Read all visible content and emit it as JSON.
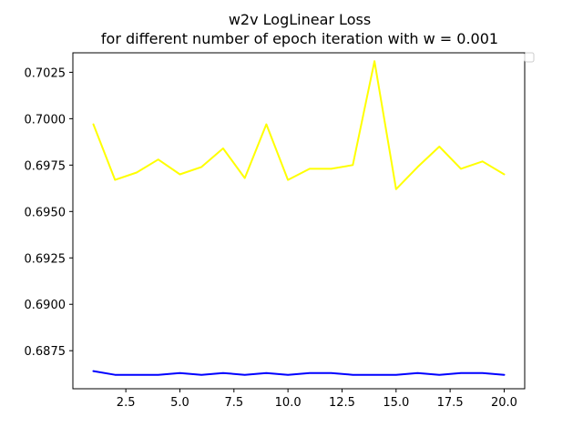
{
  "chart_data": {
    "type": "line",
    "title": "w2v LogLinear Loss",
    "subtitle": "for different number of epoch iteration with w = 0.001",
    "xlabel": "",
    "ylabel": "",
    "x": [
      1,
      2,
      3,
      4,
      5,
      6,
      7,
      8,
      9,
      10,
      11,
      12,
      13,
      14,
      15,
      16,
      17,
      18,
      19,
      20
    ],
    "xlim": [
      0.05,
      20.95
    ],
    "ylim": [
      0.68545,
      0.70355
    ],
    "xticks": [
      2.5,
      5.0,
      7.5,
      10.0,
      12.5,
      15.0,
      17.5,
      20.0
    ],
    "xtick_labels": [
      "2.5",
      "5.0",
      "7.5",
      "10.0",
      "12.5",
      "15.0",
      "17.5",
      "20.0"
    ],
    "yticks": [
      0.6875,
      0.69,
      0.6925,
      0.695,
      0.6975,
      0.7,
      0.7025
    ],
    "ytick_labels": [
      "0.6875",
      "0.6900",
      "0.6925",
      "0.6950",
      "0.6975",
      "0.7000",
      "0.7025"
    ],
    "grid": false,
    "legend": "upper right (empty)",
    "series": [
      {
        "color": "#ffff00",
        "values": [
          0.6997,
          0.6967,
          0.6971,
          0.6978,
          0.697,
          0.6974,
          0.6984,
          0.6968,
          0.6997,
          0.6967,
          0.6973,
          0.6973,
          0.6975,
          0.7031,
          0.6962,
          0.6974,
          0.6985,
          0.6973,
          0.6977,
          0.697
        ]
      },
      {
        "color": "#0000ff",
        "values": [
          0.6864,
          0.6862,
          0.6862,
          0.6862,
          0.6863,
          0.6862,
          0.6863,
          0.6862,
          0.6863,
          0.6862,
          0.6863,
          0.6863,
          0.6862,
          0.6862,
          0.6862,
          0.6863,
          0.6862,
          0.6863,
          0.6863,
          0.6862
        ]
      }
    ]
  }
}
